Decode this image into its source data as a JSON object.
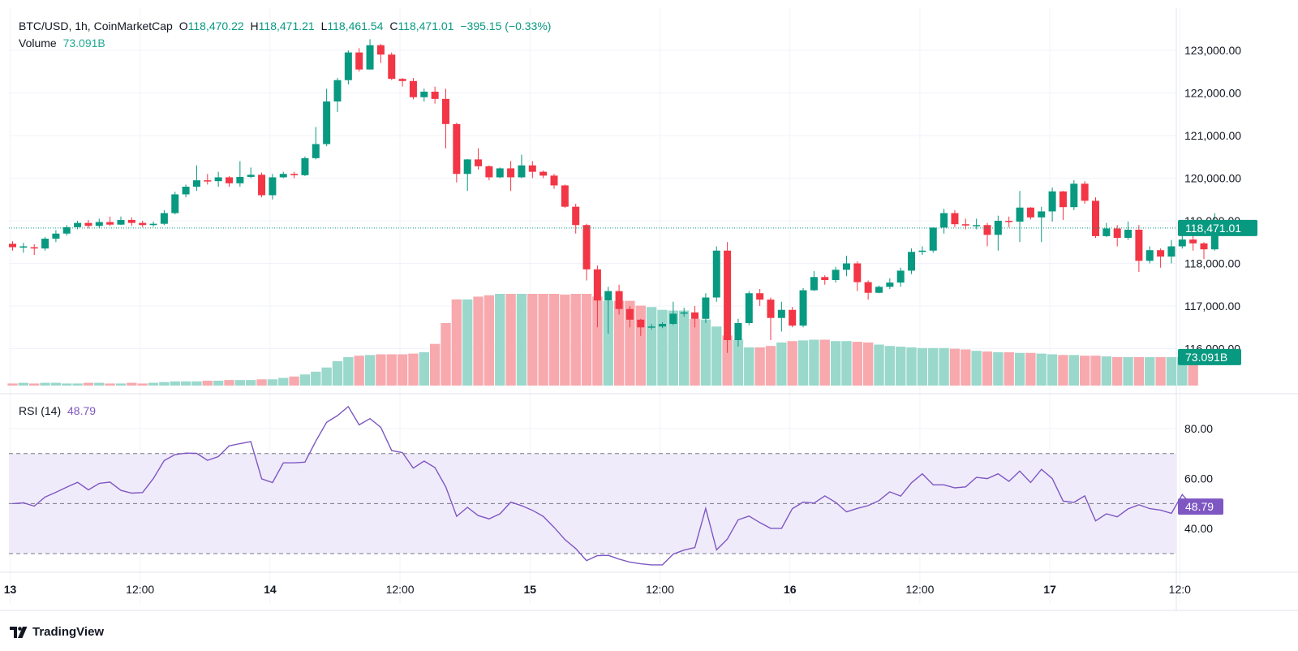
{
  "header": {
    "symbol": "BTC/USD, 1h, CoinMarketCap",
    "open_label": "O",
    "open": "118,470.22",
    "high_label": "H",
    "high": "118,471.21",
    "low_label": "L",
    "low": "118,461.54",
    "close_label": "C",
    "close": "118,471.01",
    "change": "−395.15 (−0.33%)",
    "volume_label": "Volume",
    "volume": "73.091B",
    "rsi_label": "RSI (14)",
    "rsi": "48.79"
  },
  "colors": {
    "up": "#089981",
    "down": "#f23645",
    "up_vol": "#9ad8cc",
    "down_vol": "#f7a9ae",
    "rsi": "#7e57c2",
    "rsi_band": "#f0ebfa",
    "grid": "#f0f3fa"
  },
  "price_axis": {
    "ticks": [
      "123,000.00",
      "122,000.00",
      "121,000.00",
      "120,000.00",
      "119,000.00",
      "118,000.00",
      "117,000.00",
      "116,000.00"
    ],
    "last_price": "118,471.01",
    "volume_badge": "73.091B"
  },
  "rsi_axis": {
    "ticks": [
      "80.00",
      "60.00",
      "40.00"
    ],
    "badge": "48.79"
  },
  "time_axis": {
    "ticks": [
      "13",
      "12:00",
      "14",
      "12:00",
      "15",
      "12:00",
      "16",
      "12:00",
      "17",
      "12:0"
    ],
    "bold": [
      true,
      false,
      true,
      false,
      true,
      false,
      true,
      false,
      true,
      false
    ]
  },
  "brand": {
    "name": "TradingView"
  },
  "chart_data": {
    "type": "candlestick",
    "title": "BTC/USD, 1h, CoinMarketCap",
    "interval": "1h",
    "price_range": [
      115500,
      123300
    ],
    "candles": [
      [
        118460,
        118380,
        118520,
        118300
      ],
      [
        118380,
        118400,
        118480,
        118250
      ],
      [
        118380,
        118350,
        118450,
        118200
      ],
      [
        118350,
        118580,
        118620,
        118300
      ],
      [
        118580,
        118700,
        118780,
        118500
      ],
      [
        118700,
        118850,
        118900,
        118650
      ],
      [
        118850,
        118950,
        119000,
        118800
      ],
      [
        118950,
        118880,
        119020,
        118820
      ],
      [
        118880,
        118970,
        119050,
        118830
      ],
      [
        118970,
        118910,
        119100,
        118880
      ],
      [
        118910,
        119020,
        119100,
        118900
      ],
      [
        119020,
        118950,
        119080,
        118880
      ],
      [
        118950,
        118900,
        119000,
        118850
      ],
      [
        118900,
        118930,
        118980,
        118860
      ],
      [
        118930,
        119180,
        119250,
        118900
      ],
      [
        119180,
        119620,
        119680,
        119150
      ],
      [
        119620,
        119800,
        119850,
        119550
      ],
      [
        119800,
        119950,
        120300,
        119700
      ],
      [
        119950,
        119930,
        120100,
        119850
      ],
      [
        119930,
        120020,
        120150,
        119800
      ],
      [
        120020,
        119880,
        120050,
        119800
      ],
      [
        119880,
        120030,
        120400,
        119800
      ],
      [
        120030,
        120080,
        120250,
        120000
      ],
      [
        120080,
        119600,
        120130,
        119550
      ],
      [
        119600,
        120020,
        120100,
        119500
      ],
      [
        120020,
        120100,
        120150,
        120000
      ],
      [
        120100,
        120070,
        120150,
        120000
      ],
      [
        120070,
        120470,
        120510,
        120050
      ],
      [
        120470,
        120800,
        121200,
        120440
      ],
      [
        120800,
        121800,
        122100,
        120750
      ],
      [
        121800,
        122300,
        122350,
        121550
      ],
      [
        122300,
        122950,
        123000,
        122200
      ],
      [
        122950,
        122550,
        123050,
        122500
      ],
      [
        122550,
        123120,
        123260,
        122550
      ],
      [
        123120,
        122900,
        123150,
        122700
      ],
      [
        122900,
        122330,
        122950,
        122300
      ],
      [
        122330,
        122280,
        122350,
        122150
      ],
      [
        122280,
        121900,
        122350,
        121850
      ],
      [
        121900,
        122030,
        122100,
        121800
      ],
      [
        122030,
        121860,
        122150,
        121750
      ],
      [
        121860,
        121270,
        122100,
        120700
      ],
      [
        121270,
        120100,
        121300,
        119900
      ],
      [
        120100,
        120440,
        120450,
        119700
      ],
      [
        120440,
        120280,
        120700,
        120200
      ],
      [
        120280,
        120020,
        120300,
        119950
      ],
      [
        120020,
        120230,
        120250,
        120000
      ],
      [
        120230,
        120020,
        120400,
        119700
      ],
      [
        120020,
        120300,
        120550,
        120000
      ],
      [
        120300,
        120150,
        120400,
        120000
      ],
      [
        120150,
        120060,
        120180,
        120000
      ],
      [
        120060,
        119830,
        120100,
        119750
      ],
      [
        119830,
        119330,
        119850,
        119300
      ],
      [
        119330,
        118900,
        119400,
        118700
      ],
      [
        118900,
        117860,
        118930,
        117600
      ],
      [
        117860,
        117130,
        117950,
        116500
      ],
      [
        117130,
        117350,
        117450,
        116350
      ],
      [
        117350,
        116930,
        117500,
        116800
      ],
      [
        116930,
        116680,
        117000,
        116500
      ],
      [
        116680,
        116500,
        116700,
        116300
      ],
      [
        116500,
        116520,
        116580,
        116450
      ],
      [
        116520,
        116580,
        116620,
        116480
      ],
      [
        116580,
        116820,
        117100,
        116550
      ],
      [
        116820,
        116850,
        116960,
        116750
      ],
      [
        116850,
        116700,
        117000,
        116500
      ],
      [
        116700,
        117200,
        117300,
        116600
      ],
      [
        117200,
        118300,
        118400,
        117100
      ],
      [
        118300,
        116200,
        118500,
        115900
      ],
      [
        116200,
        116600,
        116700,
        116050
      ],
      [
        116600,
        117300,
        117350,
        116550
      ],
      [
        117300,
        117150,
        117400,
        117000
      ],
      [
        117150,
        116720,
        117200,
        116200
      ],
      [
        116720,
        116910,
        117100,
        116400
      ],
      [
        116910,
        116540,
        116980,
        116500
      ],
      [
        116540,
        117370,
        117420,
        116500
      ],
      [
        117370,
        117680,
        117820,
        117350
      ],
      [
        117680,
        117610,
        117720,
        117500
      ],
      [
        117610,
        117850,
        117920,
        117550
      ],
      [
        117850,
        118000,
        118180,
        117700
      ],
      [
        118000,
        117560,
        118050,
        117350
      ],
      [
        117560,
        117310,
        117600,
        117150
      ],
      [
        117310,
        117450,
        117480,
        117300
      ],
      [
        117450,
        117550,
        117650,
        117400
      ],
      [
        117550,
        117830,
        117900,
        117450
      ],
      [
        117830,
        118270,
        118350,
        117750
      ],
      [
        118270,
        118300,
        118400,
        118200
      ],
      [
        118300,
        118840,
        118850,
        118250
      ],
      [
        118840,
        119180,
        119280,
        118700
      ],
      [
        119180,
        118920,
        119250,
        118850
      ],
      [
        118920,
        118890,
        119050,
        118800
      ],
      [
        118890,
        118900,
        119050,
        118800
      ],
      [
        118900,
        118670,
        118950,
        118400
      ],
      [
        118670,
        119000,
        119120,
        118300
      ],
      [
        119000,
        118980,
        119100,
        118850
      ],
      [
        118980,
        119310,
        119700,
        118500
      ],
      [
        119310,
        119080,
        119320,
        119030
      ],
      [
        119080,
        119220,
        119330,
        118500
      ],
      [
        119220,
        119690,
        119780,
        118980
      ],
      [
        119690,
        119320,
        119700,
        119020
      ],
      [
        119320,
        119870,
        119950,
        119250
      ],
      [
        119870,
        119470,
        119930,
        119400
      ],
      [
        119470,
        118640,
        119550,
        118600
      ],
      [
        118640,
        118820,
        118950,
        118620
      ],
      [
        118820,
        118600,
        118900,
        118400
      ],
      [
        118600,
        118790,
        118980,
        118550
      ],
      [
        118790,
        118060,
        118900,
        117800
      ],
      [
        118060,
        118310,
        118400,
        118000
      ],
      [
        118310,
        118160,
        118350,
        117900
      ],
      [
        118160,
        118400,
        118550,
        118000
      ],
      [
        118400,
        118560,
        118650,
        118350
      ],
      [
        118560,
        118470,
        118650,
        118300
      ],
      [
        118470,
        118330,
        118500,
        118100
      ],
      [
        118330,
        118830,
        119180,
        118300
      ]
    ],
    "volume_bars_b": [
      64.3,
      64.4,
      64.3,
      64.4,
      64.4,
      64.3,
      64.3,
      64.4,
      64.4,
      64.3,
      64.3,
      64.4,
      64.3,
      64.4,
      64.5,
      64.6,
      64.6,
      64.6,
      64.7,
      64.7,
      64.8,
      64.8,
      64.8,
      64.9,
      64.9,
      65.1,
      65.3,
      65.6,
      66.0,
      66.6,
      67.5,
      68.1,
      68.3,
      68.4,
      68.5,
      68.5,
      68.5,
      68.6,
      68.8,
      70.0,
      73.0,
      76.4,
      76.4,
      76.8,
      77.0,
      77.2,
      77.2,
      77.2,
      77.2,
      77.2,
      77.2,
      77.1,
      77.2,
      77.2,
      76.8,
      76.2,
      76.2,
      76.2,
      75.5,
      75.3,
      74.9,
      74.8,
      74.8,
      73.6,
      73.5,
      72.5,
      71.2,
      70.6,
      69.5,
      69.5,
      69.7,
      70.2,
      70.4,
      70.5,
      70.6,
      70.6,
      70.4,
      70.4,
      70.3,
      70.2,
      69.9,
      69.7,
      69.6,
      69.5,
      69.4,
      69.4,
      69.4,
      69.3,
      69.2,
      69.0,
      68.9,
      68.8,
      68.8,
      68.7,
      68.7,
      68.6,
      68.5,
      68.4,
      68.4,
      68.3,
      68.3,
      68.2,
      68.1,
      68.1,
      68.1,
      68.1,
      68.1,
      68.1,
      68.1,
      68.1
    ],
    "rsi": {
      "period": 14,
      "upper_band": 70,
      "lower_band": 30,
      "mid_line": 50,
      "range": [
        20,
        92
      ],
      "values": [
        50.0,
        50.3,
        49.0,
        52.6,
        54.5,
        56.6,
        58.5,
        55.5,
        58.1,
        58.6,
        55.3,
        54.2,
        54.4,
        60.0,
        67.2,
        69.6,
        70.2,
        70.1,
        67.3,
        68.8,
        73.1,
        74.0,
        74.8,
        59.9,
        58.4,
        66.3,
        66.3,
        66.6,
        75.0,
        82.5,
        85.2,
        88.8,
        81.5,
        84.0,
        80.5,
        71.2,
        70.4,
        64.2,
        67.0,
        64.4,
        56.7,
        44.9,
        48.5,
        45.2,
        43.9,
        45.9,
        50.6,
        49.2,
        47.3,
        44.9,
        40.5,
        35.6,
        32.0,
        27.2,
        29.2,
        29.3,
        27.8,
        26.6,
        25.9,
        25.5,
        25.5,
        29.8,
        31.4,
        32.4,
        48.1,
        31.5,
        35.8,
        43.5,
        45.0,
        42.4,
        40.1,
        40.1,
        48.0,
        50.6,
        50.2,
        53.1,
        50.5,
        46.7,
        48.1,
        49.2,
        51.2,
        54.7,
        53.0,
        58.3,
        61.9,
        57.5,
        57.5,
        56.3,
        56.7,
        60.5,
        60.0,
        61.9,
        58.9,
        63.0,
        58.4,
        63.7,
        60.0,
        51.0,
        50.5,
        53.1,
        43.1,
        45.9,
        44.7,
        47.9,
        49.5,
        48.0,
        47.4,
        46.1,
        53.6,
        48.79
      ]
    },
    "x_tick_labels": [
      "13",
      "12:00",
      "14",
      "12:00",
      "15",
      "12:00",
      "16",
      "12:00",
      "17",
      "12:0"
    ]
  }
}
